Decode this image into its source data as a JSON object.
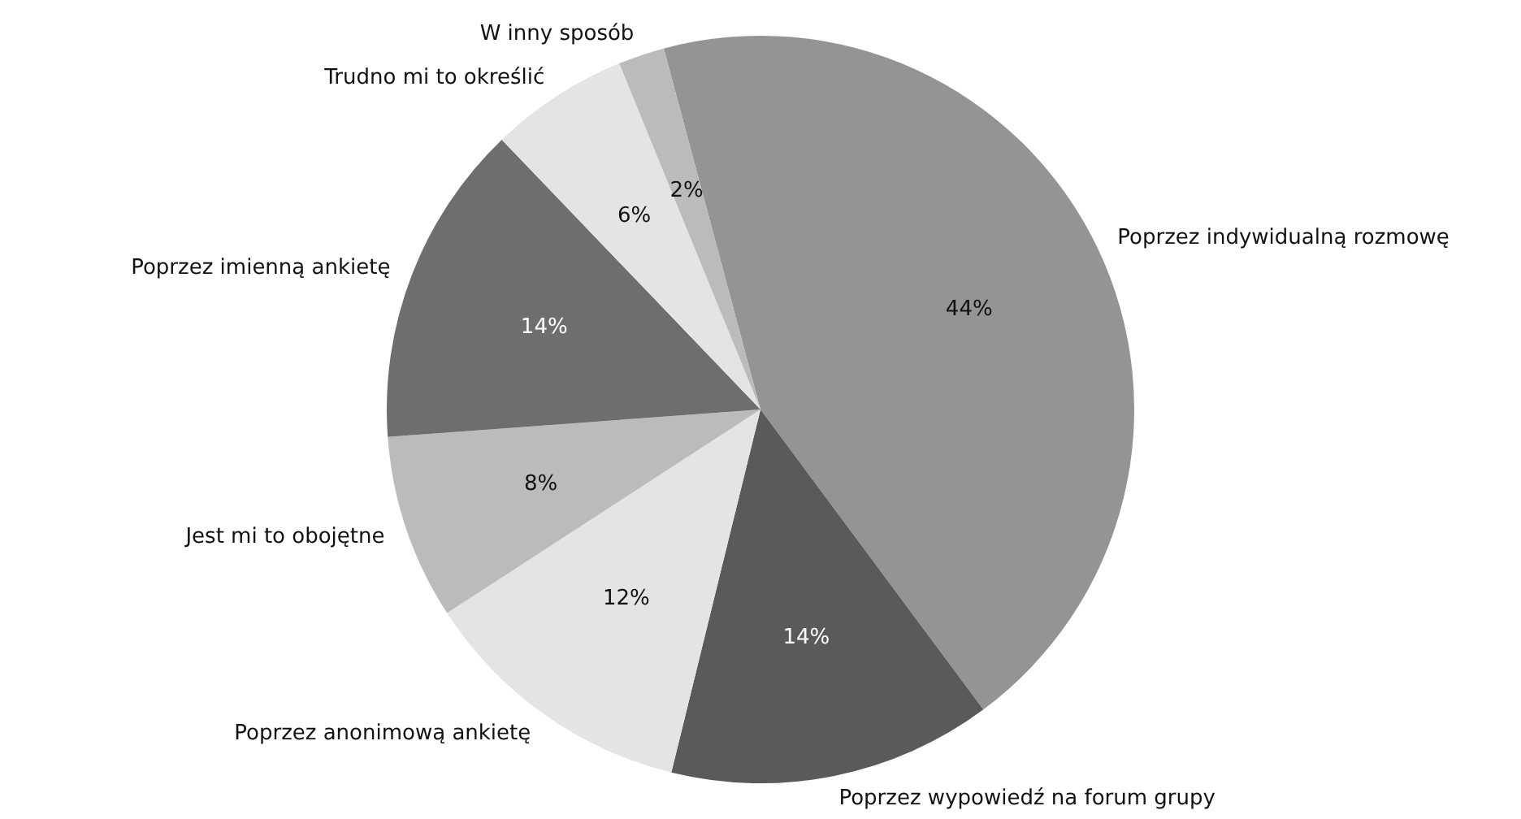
{
  "chart_data": {
    "type": "pie",
    "categories": [
      "Poprzez indywidualną rozmowę",
      "Poprzez wypowiedź na forum grupy",
      "Poprzez anonimową ankietę",
      "Jest mi to obojętne",
      "Poprzez imienną ankietę",
      "Trudno mi to określić",
      "W inny sposób"
    ],
    "values": [
      44,
      14,
      12,
      8,
      14,
      6,
      2
    ],
    "colors": [
      "#949497",
      "#5a5a5d",
      "#e4e4e6",
      "#bbbbbd",
      "#6e6e71",
      "#e4e4e6",
      "#bbbbbd"
    ],
    "value_labels": [
      "44%",
      "14%",
      "12%",
      "8%",
      "14%",
      "6%",
      "2%"
    ]
  }
}
